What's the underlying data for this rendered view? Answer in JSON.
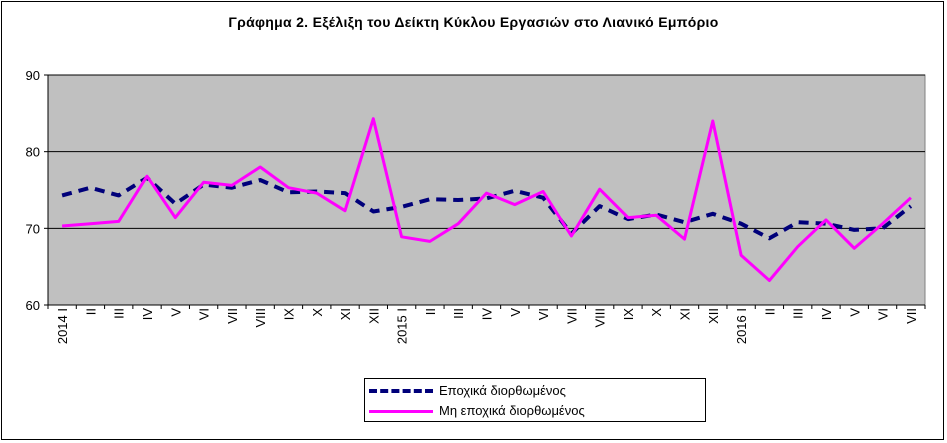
{
  "chart_data": {
    "type": "line",
    "title": "Γράφημα 2. Εξέλιξη του Δείκτη Κύκλου Εργασιών στο Λιανικό Εμπόριο",
    "xlabel": "",
    "ylabel": "",
    "ylim": [
      60,
      90
    ],
    "yticks": [
      "60",
      "70",
      "80",
      "90"
    ],
    "grid": true,
    "legend_position": "bottom-center",
    "categories": [
      "2014 I",
      "II",
      "III",
      "IV",
      "V",
      "VI",
      "VII",
      "VIII",
      "IX",
      "X",
      "XI",
      "XII",
      "2015 I",
      "II",
      "III",
      "IV",
      "V",
      "VI",
      "VII",
      "VIII",
      "IX",
      "X",
      "XI",
      "XII",
      "2016 I",
      "II",
      "III",
      "IV",
      "V",
      "VI",
      "VII"
    ],
    "series": [
      {
        "name": "Εποχικά διορθωμένος",
        "color": "#00007a",
        "style": "dashed",
        "values": [
          74.3,
          75.3,
          74.3,
          76.6,
          73.2,
          75.7,
          75.3,
          76.3,
          74.7,
          74.8,
          74.6,
          72.2,
          72.8,
          73.8,
          73.7,
          73.9,
          74.9,
          74.0,
          69.3,
          72.9,
          71.2,
          71.8,
          70.8,
          71.9,
          70.6,
          68.7,
          70.8,
          70.6,
          69.8,
          70.0,
          72.9
        ]
      },
      {
        "name": "Μη εποχικά διορθωμένος",
        "color": "#ff00ff",
        "style": "solid",
        "values": [
          70.3,
          70.6,
          70.9,
          76.8,
          71.4,
          76.0,
          75.6,
          78.0,
          75.3,
          74.6,
          72.3,
          84.3,
          68.9,
          68.3,
          70.6,
          74.6,
          73.1,
          74.8,
          69.0,
          75.1,
          71.4,
          71.7,
          68.6,
          84.0,
          66.5,
          63.2,
          67.6,
          71.1,
          67.4,
          70.6,
          74.0
        ]
      }
    ]
  }
}
